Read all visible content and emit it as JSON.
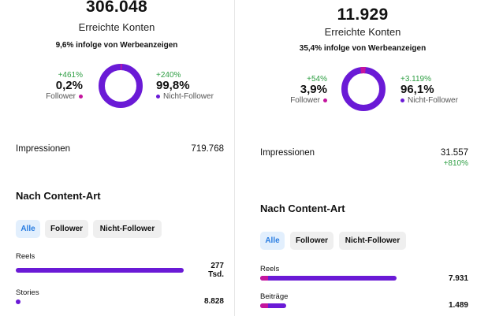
{
  "left": {
    "reach_value": "306.048",
    "reach_label": "Erreichte Konten",
    "ads_text": "9,6% infolge von Werbeanzeigen",
    "follower": {
      "delta": "+461%",
      "percent": "0,2%",
      "label": "Follower",
      "fraction": 0.002
    },
    "non_follower": {
      "delta": "+240%",
      "percent": "99,8%",
      "label": "Nicht-Follower",
      "fraction": 0.998
    },
    "impressions": {
      "label": "Impressionen",
      "value": "719.768"
    },
    "content_title": "Nach Content-Art",
    "chips": [
      "Alle",
      "Follower",
      "Nicht-Follower"
    ],
    "bars": [
      {
        "label": "Reels",
        "value_line1": "277",
        "value_line2": "Tsd.",
        "fraction": 1.0,
        "follower_fraction": 0.0
      },
      {
        "label": "Stories",
        "value_line1": "8.828",
        "value_line2": "",
        "fraction": 0.03,
        "follower_fraction": 0.0
      }
    ]
  },
  "right": {
    "reach_value": "11.929",
    "reach_label": "Erreichte Konten",
    "ads_text": "35,4% infolge von Werbeanzeigen",
    "follower": {
      "delta": "+54%",
      "percent": "3,9%",
      "label": "Follower",
      "fraction": 0.039
    },
    "non_follower": {
      "delta": "+3.119%",
      "percent": "96,1%",
      "label": "Nicht-Follower",
      "fraction": 0.961
    },
    "impressions": {
      "label": "Impressionen",
      "value": "31.557",
      "delta": "+810%"
    },
    "content_title": "Nach Content-Art",
    "chips": [
      "Alle",
      "Follower",
      "Nicht-Follower"
    ],
    "bars": [
      {
        "label": "Reels",
        "value_line1": "7.931",
        "value_line2": "",
        "fraction": 1.0,
        "follower_fraction": 0.06
      },
      {
        "label": "Beiträge",
        "value_line1": "1.489",
        "value_line2": "",
        "fraction": 0.19,
        "follower_fraction": 0.3
      }
    ]
  },
  "colors": {
    "follower": "#c4149d",
    "non_follower": "#6a1ad6",
    "positive": "#2e9e43",
    "chip_active_text": "#2a7de1"
  }
}
